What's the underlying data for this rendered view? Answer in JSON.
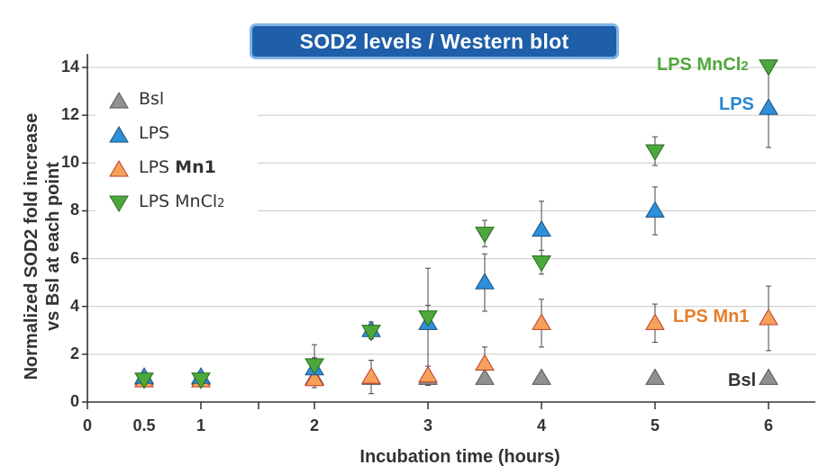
{
  "chart_data": {
    "type": "scatter",
    "title": "SOD2 levels / Western blot",
    "xlabel": "Incubation time (hours)",
    "ylabel_line1": "Normalized SOD2 fold increase",
    "ylabel_line2": "vs Bsl at each point",
    "xlim": [
      0,
      6.4
    ],
    "ylim": [
      0,
      14.5
    ],
    "xticks": [
      "0",
      "0.5",
      "1",
      "2",
      "3",
      "4",
      "5",
      "6"
    ],
    "xtick_values": [
      0,
      0.5,
      1,
      2,
      3,
      4,
      5,
      6
    ],
    "yticks": [
      "0",
      "2",
      "4",
      "6",
      "8",
      "10",
      "12",
      "14"
    ],
    "ytick_values": [
      0,
      2,
      4,
      6,
      8,
      10,
      12,
      14
    ],
    "grid": "horizontal",
    "legend_position": "top-left",
    "series": [
      {
        "name": "Bsl",
        "marker": "triangle-up",
        "color": "#909090",
        "legend_label": "Bsl",
        "legend_bold": "",
        "end_label": "Bsl",
        "end_label_color": "#333333",
        "points": [
          {
            "x": 0.5,
            "y": 1.0,
            "err": 0.15
          },
          {
            "x": 1,
            "y": 1.0,
            "err": 0.15
          },
          {
            "x": 2,
            "y": 1.0,
            "err": 0.15
          },
          {
            "x": 2.5,
            "y": 1.0,
            "err": 0.15
          },
          {
            "x": 3,
            "y": 1.0,
            "err": 0.15
          },
          {
            "x": 3.5,
            "y": 1.0,
            "err": 0.15
          },
          {
            "x": 4,
            "y": 1.0,
            "err": 0
          },
          {
            "x": 5,
            "y": 1.0,
            "err": 0
          },
          {
            "x": 6,
            "y": 1.0,
            "err": 0
          }
        ]
      },
      {
        "name": "LPS Mn1",
        "marker": "triangle-up",
        "color": "#f5a15a",
        "legend_label": "LPS ",
        "legend_bold": "Mn1",
        "end_label": "LPS Mn1",
        "end_label_color": "#e57d2a",
        "points": [
          {
            "x": 0.5,
            "y": 0.9,
            "err": 0.25
          },
          {
            "x": 1,
            "y": 0.9,
            "err": 0.25
          },
          {
            "x": 2,
            "y": 0.95,
            "err": 0.35
          },
          {
            "x": 2.5,
            "y": 1.05,
            "err": 0.7
          },
          {
            "x": 3,
            "y": 1.1,
            "err": 0.4
          },
          {
            "x": 3.5,
            "y": 1.6,
            "err": 0.7
          },
          {
            "x": 4,
            "y": 3.3,
            "err": 1.0
          },
          {
            "x": 5,
            "y": 3.3,
            "err": 0.8
          },
          {
            "x": 6,
            "y": 3.5,
            "err": 1.35
          }
        ]
      },
      {
        "name": "LPS",
        "marker": "triangle-up",
        "color": "#2e8fdb",
        "legend_label": "LPS",
        "legend_bold": "",
        "end_label": "LPS",
        "end_label_color": "#2a86cf",
        "points": [
          {
            "x": 0.5,
            "y": 1.05,
            "err": 0.2
          },
          {
            "x": 1,
            "y": 1.05,
            "err": 0.2
          },
          {
            "x": 2,
            "y": 1.4,
            "err": 0.45
          },
          {
            "x": 2.5,
            "y": 3.0,
            "err": 0.35
          },
          {
            "x": 3,
            "y": 3.3,
            "err": 2.3
          },
          {
            "x": 3.5,
            "y": 5.0,
            "err": 1.2
          },
          {
            "x": 4,
            "y": 7.2,
            "err": 1.2
          },
          {
            "x": 5,
            "y": 8.0,
            "err": 1.0
          },
          {
            "x": 6,
            "y": 12.3,
            "err": 1.65
          }
        ]
      },
      {
        "name": "LPS MnCl2",
        "marker": "triangle-down",
        "color": "#4ca83c",
        "legend_label": "LPS MnCl",
        "legend_sub": "2",
        "legend_bold": "",
        "end_label": "LPS MnCl",
        "end_label_sub": "2",
        "end_label_color": "#4ea83c",
        "points": [
          {
            "x": 0.5,
            "y": 0.95,
            "err": 0.2
          },
          {
            "x": 1,
            "y": 0.95,
            "err": 0.2
          },
          {
            "x": 2,
            "y": 1.55,
            "err": 0.85
          },
          {
            "x": 2.5,
            "y": 2.95,
            "err": 0.3
          },
          {
            "x": 3,
            "y": 3.55,
            "err": 0.5
          },
          {
            "x": 3.5,
            "y": 7.05,
            "err": 0.55
          },
          {
            "x": 4,
            "y": 5.85,
            "err": 0.5
          },
          {
            "x": 5,
            "y": 10.5,
            "err": 0.6
          },
          {
            "x": 6,
            "y": 14.05,
            "err": 0.2
          }
        ]
      }
    ]
  }
}
